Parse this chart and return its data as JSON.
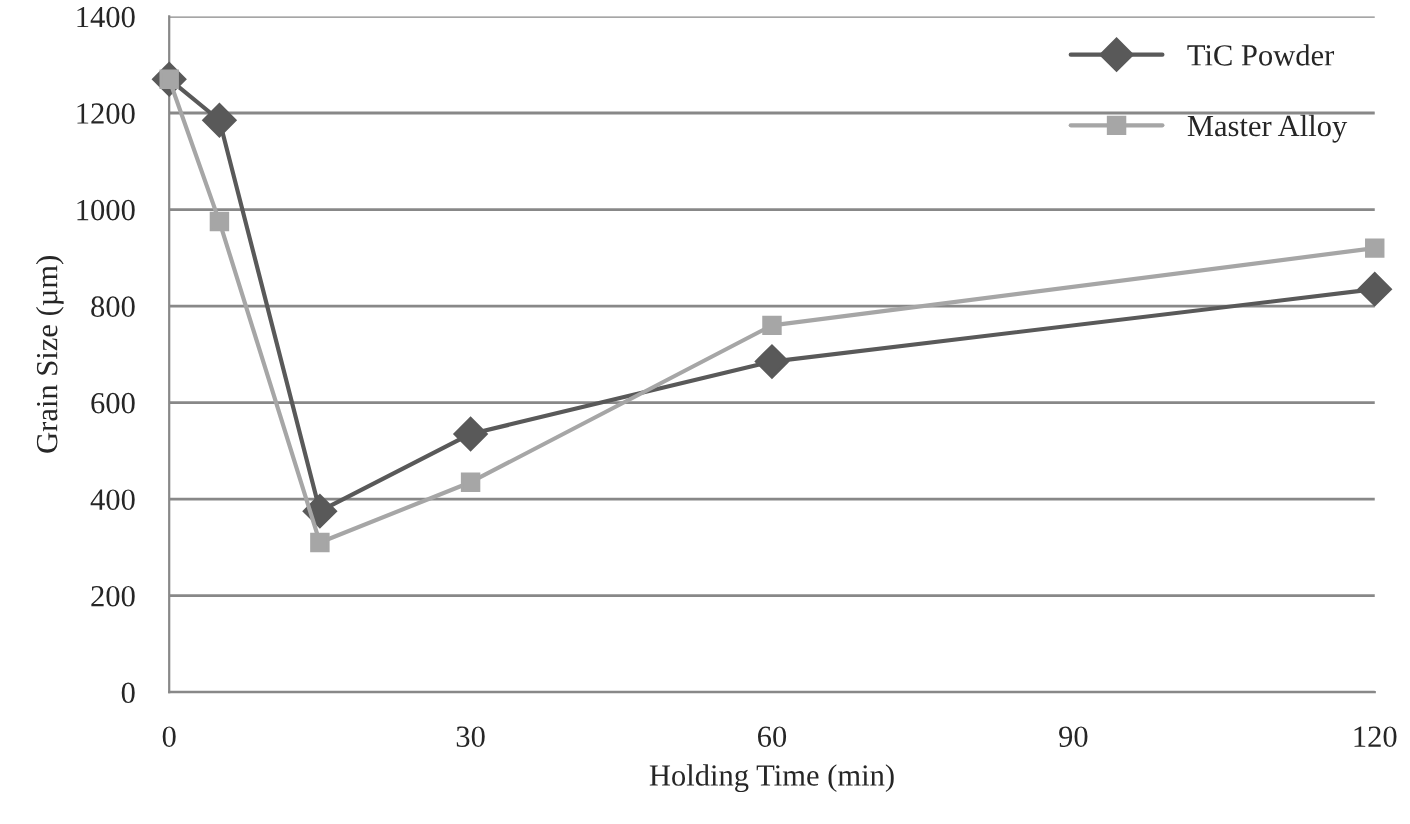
{
  "chart_data": {
    "type": "line",
    "xlabel": "Holding Time (min)",
    "ylabel": "Grain Size (µm)",
    "x": [
      0,
      5,
      15,
      30,
      60,
      120
    ],
    "series": [
      {
        "name": "TiC Powder",
        "color": "#595959",
        "marker": "diamond",
        "values": [
          1270,
          1185,
          375,
          535,
          685,
          835
        ]
      },
      {
        "name": "Master Alloy",
        "color": "#a6a6a6",
        "marker": "square",
        "values": [
          1270,
          975,
          310,
          435,
          760,
          920
        ]
      }
    ],
    "xlim": [
      0,
      120
    ],
    "xticks": [
      0,
      30,
      60,
      90,
      120
    ],
    "ylim": [
      0,
      1400
    ],
    "yticks": [
      0,
      200,
      400,
      600,
      800,
      1000,
      1200,
      1400
    ],
    "grid": "y",
    "legend": "top right",
    "line_style": "solid"
  }
}
